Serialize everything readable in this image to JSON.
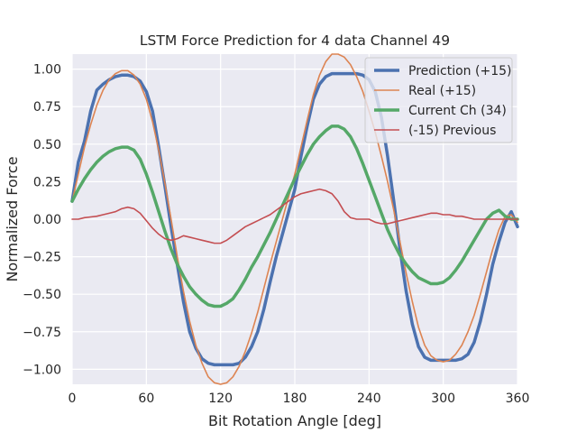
{
  "chart_data": {
    "type": "line",
    "title": "LSTM Force Prediction for 4 data Channel 49",
    "xlabel": "Bit Rotation Angle [deg]",
    "ylabel": "Normalized Force",
    "xlim": [
      0,
      360
    ],
    "ylim": [
      -1.1,
      1.1
    ],
    "xticks": [
      0,
      60,
      120,
      180,
      240,
      300,
      360
    ],
    "yticks": [
      -1.0,
      -0.75,
      -0.5,
      -0.25,
      0.0,
      0.25,
      0.5,
      0.75,
      1.0
    ],
    "grid": true,
    "legend_position": "top-right",
    "series": [
      {
        "name": "Prediction (+15)",
        "color": "#4c72b0",
        "x": [
          0,
          5,
          10,
          15,
          20,
          25,
          30,
          35,
          40,
          45,
          50,
          55,
          60,
          65,
          70,
          75,
          80,
          85,
          90,
          95,
          100,
          105,
          110,
          115,
          120,
          125,
          130,
          135,
          140,
          145,
          150,
          155,
          160,
          165,
          170,
          175,
          180,
          185,
          190,
          195,
          200,
          205,
          210,
          215,
          220,
          225,
          230,
          235,
          240,
          245,
          250,
          255,
          260,
          265,
          270,
          275,
          280,
          285,
          290,
          295,
          300,
          305,
          310,
          315,
          320,
          325,
          330,
          335,
          340,
          345,
          350,
          355,
          360
        ],
        "y": [
          0.12,
          0.38,
          0.52,
          0.72,
          0.86,
          0.9,
          0.93,
          0.95,
          0.96,
          0.96,
          0.95,
          0.92,
          0.85,
          0.72,
          0.48,
          0.22,
          -0.05,
          -0.3,
          -0.55,
          -0.75,
          -0.86,
          -0.93,
          -0.96,
          -0.97,
          -0.97,
          -0.97,
          -0.97,
          -0.96,
          -0.92,
          -0.85,
          -0.75,
          -0.6,
          -0.42,
          -0.25,
          -0.1,
          0.05,
          0.2,
          0.42,
          0.62,
          0.8,
          0.9,
          0.95,
          0.97,
          0.97,
          0.97,
          0.97,
          0.97,
          0.96,
          0.93,
          0.85,
          0.68,
          0.42,
          0.12,
          -0.2,
          -0.48,
          -0.7,
          -0.85,
          -0.92,
          -0.94,
          -0.94,
          -0.94,
          -0.94,
          -0.94,
          -0.93,
          -0.9,
          -0.82,
          -0.68,
          -0.5,
          -0.3,
          -0.15,
          -0.02,
          0.05,
          -0.05
        ]
      },
      {
        "name": "Real (+15)",
        "color": "#dd8452",
        "x": [
          0,
          5,
          10,
          15,
          20,
          25,
          30,
          35,
          40,
          45,
          50,
          55,
          60,
          65,
          70,
          75,
          80,
          85,
          90,
          95,
          100,
          105,
          110,
          115,
          120,
          125,
          130,
          135,
          140,
          145,
          150,
          155,
          160,
          165,
          170,
          175,
          180,
          185,
          190,
          195,
          200,
          205,
          210,
          215,
          220,
          225,
          230,
          235,
          240,
          245,
          250,
          255,
          260,
          265,
          270,
          275,
          280,
          285,
          290,
          295,
          300,
          305,
          310,
          315,
          320,
          325,
          330,
          335,
          340,
          345,
          350,
          355,
          360
        ],
        "y": [
          0.12,
          0.3,
          0.48,
          0.63,
          0.76,
          0.86,
          0.93,
          0.97,
          0.99,
          0.99,
          0.96,
          0.9,
          0.8,
          0.65,
          0.46,
          0.24,
          0.0,
          -0.25,
          -0.48,
          -0.68,
          -0.84,
          -0.96,
          -1.05,
          -1.09,
          -1.1,
          -1.09,
          -1.05,
          -0.98,
          -0.88,
          -0.76,
          -0.62,
          -0.46,
          -0.3,
          -0.15,
          0.0,
          0.15,
          0.3,
          0.48,
          0.66,
          0.83,
          0.96,
          1.05,
          1.1,
          1.1,
          1.08,
          1.03,
          0.95,
          0.85,
          0.72,
          0.58,
          0.42,
          0.25,
          0.06,
          -0.15,
          -0.36,
          -0.55,
          -0.72,
          -0.84,
          -0.91,
          -0.94,
          -0.95,
          -0.94,
          -0.9,
          -0.84,
          -0.75,
          -0.64,
          -0.5,
          -0.35,
          -0.2,
          -0.07,
          0.02,
          0.03,
          -0.02
        ]
      },
      {
        "name": "Current Ch (34)",
        "color": "#55a868",
        "x": [
          0,
          5,
          10,
          15,
          20,
          25,
          30,
          35,
          40,
          45,
          50,
          55,
          60,
          65,
          70,
          75,
          80,
          85,
          90,
          95,
          100,
          105,
          110,
          115,
          120,
          125,
          130,
          135,
          140,
          145,
          150,
          155,
          160,
          165,
          170,
          175,
          180,
          185,
          190,
          195,
          200,
          205,
          210,
          215,
          220,
          225,
          230,
          235,
          240,
          245,
          250,
          255,
          260,
          265,
          270,
          275,
          280,
          285,
          290,
          295,
          300,
          305,
          310,
          315,
          320,
          325,
          330,
          335,
          340,
          345,
          350,
          355,
          360
        ],
        "y": [
          0.12,
          0.2,
          0.27,
          0.33,
          0.38,
          0.42,
          0.45,
          0.47,
          0.48,
          0.48,
          0.46,
          0.4,
          0.3,
          0.18,
          0.05,
          -0.08,
          -0.2,
          -0.3,
          -0.38,
          -0.45,
          -0.5,
          -0.54,
          -0.57,
          -0.58,
          -0.58,
          -0.56,
          -0.53,
          -0.47,
          -0.4,
          -0.32,
          -0.25,
          -0.17,
          -0.09,
          0.0,
          0.09,
          0.18,
          0.27,
          0.35,
          0.43,
          0.5,
          0.55,
          0.59,
          0.62,
          0.62,
          0.6,
          0.55,
          0.47,
          0.37,
          0.26,
          0.15,
          0.04,
          -0.07,
          -0.16,
          -0.24,
          -0.3,
          -0.35,
          -0.39,
          -0.41,
          -0.43,
          -0.43,
          -0.42,
          -0.39,
          -0.34,
          -0.28,
          -0.21,
          -0.14,
          -0.07,
          0.0,
          0.04,
          0.06,
          0.02,
          0.0,
          0.0
        ]
      },
      {
        "name": "(-15) Previous",
        "color": "#c44e52",
        "x": [
          0,
          5,
          10,
          15,
          20,
          25,
          30,
          35,
          40,
          45,
          50,
          55,
          60,
          65,
          70,
          75,
          80,
          85,
          90,
          95,
          100,
          105,
          110,
          115,
          120,
          125,
          130,
          135,
          140,
          145,
          150,
          155,
          160,
          165,
          170,
          175,
          180,
          185,
          190,
          195,
          200,
          205,
          210,
          215,
          220,
          225,
          230,
          235,
          240,
          245,
          250,
          255,
          260,
          265,
          270,
          275,
          280,
          285,
          290,
          295,
          300,
          305,
          310,
          315,
          320,
          325,
          330,
          335,
          340,
          345,
          350,
          355,
          360
        ],
        "y": [
          0.0,
          0.0,
          0.01,
          0.015,
          0.02,
          0.03,
          0.04,
          0.05,
          0.07,
          0.08,
          0.07,
          0.04,
          -0.01,
          -0.06,
          -0.1,
          -0.13,
          -0.14,
          -0.13,
          -0.11,
          -0.12,
          -0.13,
          -0.14,
          -0.15,
          -0.16,
          -0.16,
          -0.14,
          -0.11,
          -0.08,
          -0.05,
          -0.03,
          -0.01,
          0.01,
          0.03,
          0.06,
          0.09,
          0.12,
          0.15,
          0.17,
          0.18,
          0.19,
          0.2,
          0.19,
          0.17,
          0.12,
          0.05,
          0.01,
          0.0,
          0.0,
          0.0,
          -0.02,
          -0.03,
          -0.03,
          -0.02,
          -0.01,
          0.0,
          0.01,
          0.02,
          0.03,
          0.04,
          0.04,
          0.03,
          0.03,
          0.02,
          0.02,
          0.01,
          0.0,
          0.0,
          0.0,
          0.0,
          0.0,
          0.0,
          0.0,
          0.0
        ]
      }
    ]
  }
}
